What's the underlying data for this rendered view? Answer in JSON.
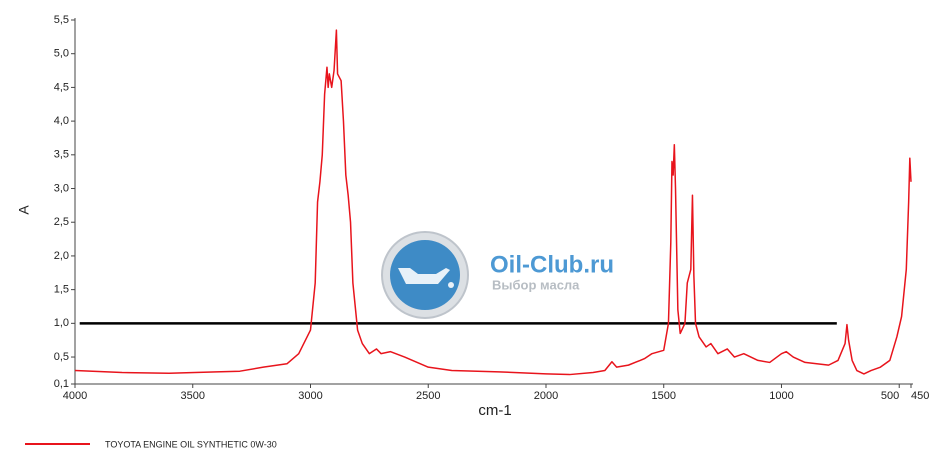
{
  "chart_data": {
    "type": "line",
    "xlabel": "cm-1",
    "ylabel": "A",
    "x": [
      4000,
      3800,
      3600,
      3400,
      3300,
      3200,
      3100,
      3050,
      3000,
      2980,
      2970,
      2960,
      2950,
      2940,
      2930,
      2925,
      2920,
      2910,
      2900,
      2890,
      2885,
      2870,
      2860,
      2850,
      2840,
      2830,
      2820,
      2800,
      2780,
      2750,
      2720,
      2700,
      2660,
      2600,
      2500,
      2400,
      2200,
      2000,
      1900,
      1800,
      1750,
      1720,
      1700,
      1650,
      1600,
      1580,
      1550,
      1500,
      1480,
      1470,
      1465,
      1460,
      1455,
      1450,
      1440,
      1430,
      1410,
      1400,
      1385,
      1378,
      1372,
      1365,
      1350,
      1320,
      1300,
      1270,
      1230,
      1200,
      1160,
      1100,
      1050,
      1000,
      980,
      950,
      900,
      850,
      800,
      760,
      730,
      722,
      715,
      700,
      680,
      650,
      620,
      580,
      540,
      510,
      490,
      470,
      460,
      455,
      450
    ],
    "series": [
      {
        "name": "TOYOTA ENGINE OIL SYNTHETIC 0W-30",
        "color": "#e8141c",
        "values": [
          0.3,
          0.27,
          0.26,
          0.28,
          0.29,
          0.35,
          0.4,
          0.55,
          0.9,
          1.6,
          2.8,
          3.1,
          3.5,
          4.4,
          4.8,
          4.5,
          4.7,
          4.5,
          4.75,
          5.35,
          4.7,
          4.6,
          4.0,
          3.2,
          2.9,
          2.5,
          1.6,
          0.9,
          0.7,
          0.55,
          0.62,
          0.55,
          0.58,
          0.5,
          0.35,
          0.3,
          0.28,
          0.25,
          0.24,
          0.27,
          0.3,
          0.43,
          0.35,
          0.38,
          0.45,
          0.48,
          0.55,
          0.6,
          1.0,
          2.2,
          3.4,
          3.2,
          3.65,
          3.0,
          1.2,
          0.85,
          1.0,
          1.6,
          1.8,
          2.9,
          1.7,
          1.0,
          0.8,
          0.65,
          0.7,
          0.55,
          0.62,
          0.5,
          0.55,
          0.45,
          0.42,
          0.55,
          0.58,
          0.5,
          0.42,
          0.4,
          0.38,
          0.45,
          0.7,
          0.98,
          0.75,
          0.45,
          0.3,
          0.25,
          0.3,
          0.35,
          0.45,
          0.8,
          1.1,
          1.8,
          2.8,
          3.45,
          3.1
        ]
      }
    ],
    "xlim": [
      4000,
      450
    ],
    "xticks": [
      4000,
      3500,
      3000,
      2500,
      2000,
      1500,
      1000,
      500,
      450
    ],
    "ylim": [
      0.1,
      5.5
    ],
    "yticks": [
      {
        "value": 0.1,
        "label": "0,1"
      },
      {
        "value": 0.5,
        "label": "0,5"
      },
      {
        "value": 1.0,
        "label": "1,0"
      },
      {
        "value": 1.5,
        "label": "1,5"
      },
      {
        "value": 2.0,
        "label": "2,0"
      },
      {
        "value": 2.5,
        "label": "2,5"
      },
      {
        "value": 3.0,
        "label": "3,0"
      },
      {
        "value": 3.5,
        "label": "3,5"
      },
      {
        "value": 4.0,
        "label": "4,0"
      },
      {
        "value": 4.5,
        "label": "4,5"
      },
      {
        "value": 5.0,
        "label": "5,0"
      },
      {
        "value": 5.5,
        "label": "5,5"
      }
    ],
    "reference_line": {
      "y": 1.0,
      "x": [
        3980,
        765
      ],
      "color": "#000000"
    },
    "watermark": {
      "title": "Oil-Club.ru",
      "subtitle": "Выбор масла"
    }
  }
}
